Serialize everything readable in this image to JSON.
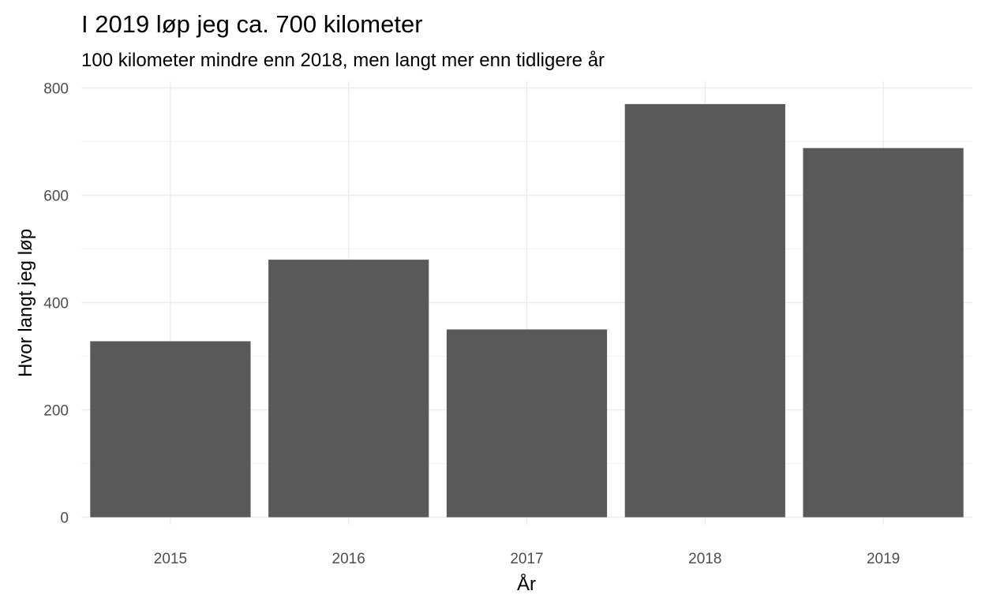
{
  "chart_data": {
    "type": "bar",
    "title": "I 2019 løp jeg ca. 700 kilometer",
    "subtitle": "100 kilometer mindre enn 2018, men langt mer enn tidligere år",
    "xlabel": "År",
    "ylabel": "Hvor langt jeg løp",
    "categories": [
      "2015",
      "2016",
      "2017",
      "2018",
      "2019"
    ],
    "values": [
      328,
      480,
      350,
      770,
      688
    ],
    "ylim": [
      0,
      800
    ],
    "yticks": [
      0,
      200,
      400,
      600,
      800
    ],
    "yticks_minor": [
      100,
      300,
      500,
      700
    ],
    "grid": true,
    "legend": "none",
    "bar_color": "#595959"
  }
}
